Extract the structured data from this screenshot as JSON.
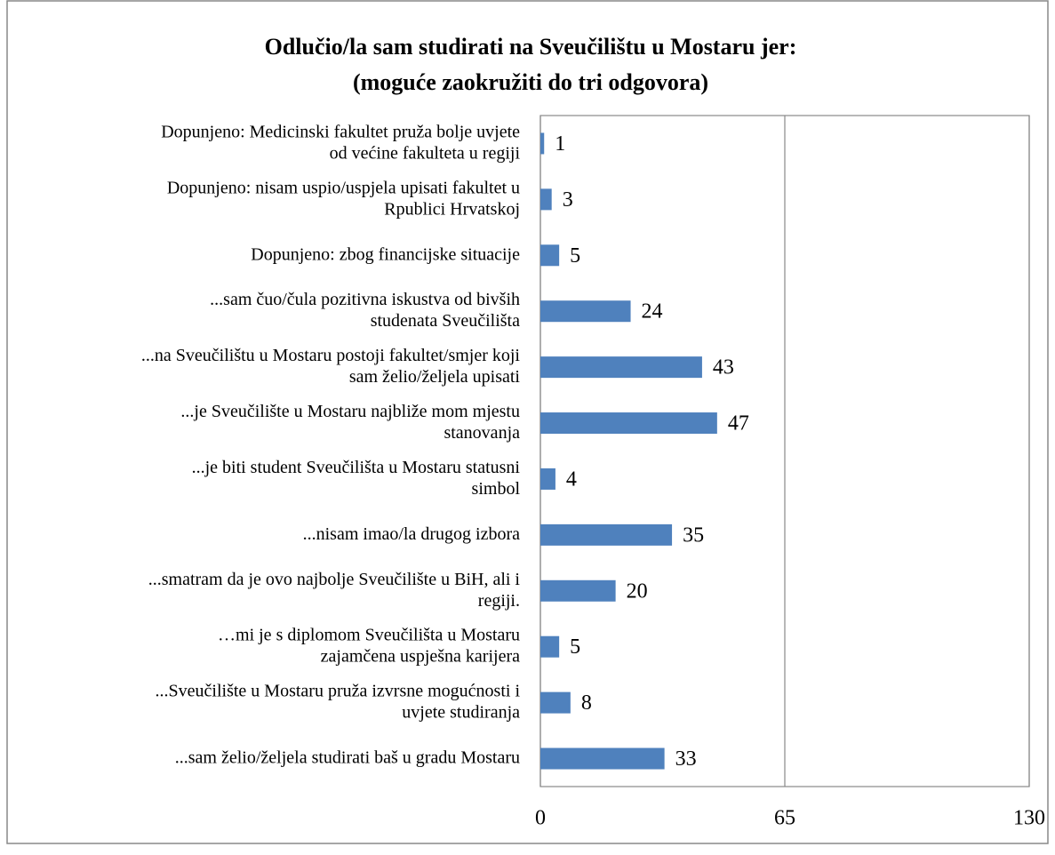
{
  "chart_data": {
    "type": "bar",
    "orientation": "horizontal",
    "title": "Odlučio/la sam studirati na Sveučilištu u Mostaru jer:\n(moguće zaokružiti do tri odgovora)",
    "categories": [
      "Dopunjeno: Medicinski fakultet pruža bolje uvjete\nod većine fakulteta u regiji",
      "Dopunjeno: nisam uspio/uspjela upisati fakultet u\nRpublici Hrvatskoj",
      "Dopunjeno: zbog financijske situacije",
      "...sam čuo/čula pozitivna iskustva od bivših\nstudenata Sveučilišta",
      "...na Sveučilištu u Mostaru postoji fakultet/smjer koji\nsam želio/željela upisati",
      "...je Sveučilište u Mostaru najbliže mom mjestu\nstanovanja",
      "...je biti student Sveučilišta u Mostaru statusni\nsimbol",
      "...nisam imao/la drugog izbora",
      "...smatram da je ovo najbolje Sveučilište u BiH, ali i\nregiji.",
      "…mi je s diplomom Sveučilišta u Mostaru\nzajamčena uspješna karijera",
      "...Sveučilište u Mostaru pruža izvrsne mogućnosti i\nuvjete studiranja",
      "...sam želio/željela studirati baš u gradu Mostaru"
    ],
    "values": [
      1,
      3,
      5,
      24,
      43,
      47,
      4,
      35,
      20,
      5,
      8,
      33
    ],
    "color": "#4f81bd",
    "xlim": [
      0,
      130
    ],
    "xticks": [
      0,
      65,
      130
    ],
    "grid": true
  }
}
